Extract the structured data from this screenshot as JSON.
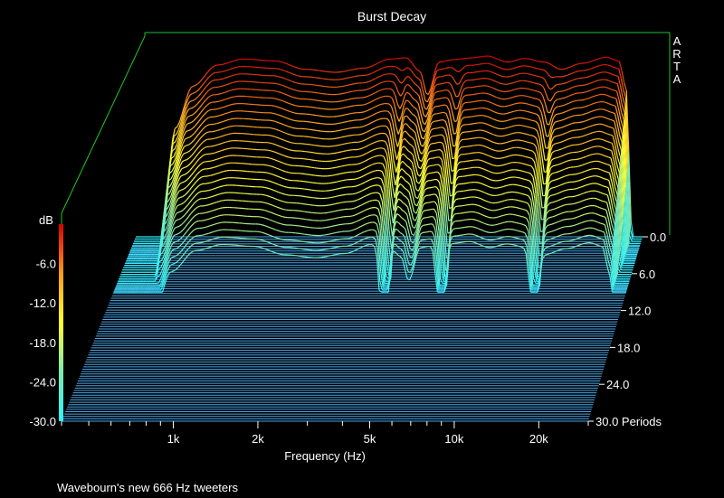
{
  "chart_data": {
    "type": "waterfall",
    "title": "Burst Decay",
    "xlabel": "Frequency (Hz)",
    "zlabel": "Periods",
    "watermark": "ARTA",
    "caption": "Wavebourn's new 666 Hz tweeters",
    "colorbar": {
      "unit": "dB",
      "ticks": [
        "-6.0",
        "-12.0",
        "-18.0",
        "-24.0",
        "-30.0"
      ],
      "range": [
        -30,
        0
      ]
    },
    "x_ticks": [
      {
        "label": "1k",
        "value": 1000
      },
      {
        "label": "2k",
        "value": 2000
      },
      {
        "label": "5k",
        "value": 5000
      },
      {
        "label": "10k",
        "value": 10000
      },
      {
        "label": "20k",
        "value": 20000
      }
    ],
    "x_range": [
      400,
      30000
    ],
    "x_scale": "log",
    "z_ticks": [
      {
        "label": "0.0",
        "value": 0
      },
      {
        "label": "6.0",
        "value": 6
      },
      {
        "label": "12.0",
        "value": 12
      },
      {
        "label": "18.0",
        "value": 18
      },
      {
        "label": "24.0",
        "value": 24
      },
      {
        "label": "30.0",
        "value": 30
      }
    ],
    "z_range": [
      0,
      30
    ],
    "slice_count": 26,
    "floor_line_count": 78,
    "response_db": [
      {
        "freq": 500,
        "db": -30
      },
      {
        "freq": 560,
        "db": -12
      },
      {
        "freq": 650,
        "db": -5
      },
      {
        "freq": 800,
        "db": -1.5
      },
      {
        "freq": 1000,
        "db": -0.5
      },
      {
        "freq": 1300,
        "db": -0.8
      },
      {
        "freq": 1700,
        "db": -2.2
      },
      {
        "freq": 2200,
        "db": -2.7
      },
      {
        "freq": 2800,
        "db": -2.0
      },
      {
        "freq": 3500,
        "db": -0.5
      },
      {
        "freq": 4000,
        "db": -0.3
      },
      {
        "freq": 4500,
        "db": -2.5
      },
      {
        "freq": 4800,
        "db": -6.5
      },
      {
        "freq": 5300,
        "db": -1.0
      },
      {
        "freq": 6000,
        "db": -0.6
      },
      {
        "freq": 7000,
        "db": -0.3
      },
      {
        "freq": 8000,
        "db": 0
      },
      {
        "freq": 9500,
        "db": -1.0
      },
      {
        "freq": 11000,
        "db": -0.4
      },
      {
        "freq": 13000,
        "db": -1.0
      },
      {
        "freq": 15000,
        "db": -2.2
      },
      {
        "freq": 18000,
        "db": -1.2
      },
      {
        "freq": 22000,
        "db": -0.2
      },
      {
        "freq": 24500,
        "db": -0.8
      },
      {
        "freq": 26000,
        "db": -5
      },
      {
        "freq": 27500,
        "db": -30
      }
    ],
    "decay_notches": [
      {
        "freq": 3900,
        "depth": 1.0
      },
      {
        "freq": 6300,
        "depth": 1.0
      },
      {
        "freq": 13800,
        "depth": 0.9
      }
    ]
  }
}
